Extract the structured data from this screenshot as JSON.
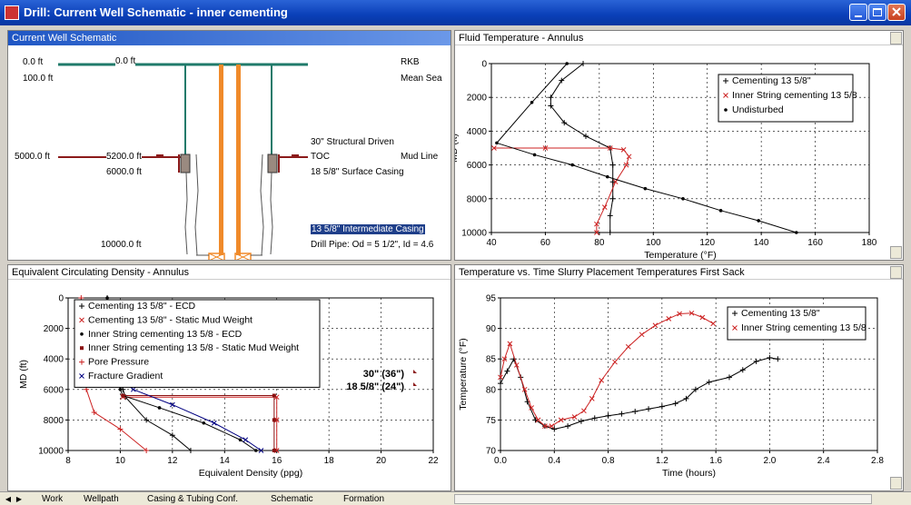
{
  "window": {
    "title": "Drill: Current Well Schematic - inner cementing",
    "icon": "app-icon"
  },
  "panes": {
    "schematic": {
      "title": "Current Well Schematic",
      "left_labels": [
        "0.0 ft",
        "100.0 ft",
        "5000.0 ft",
        "10000.0 ft"
      ],
      "inner_labels": [
        "0.0 ft",
        "5200.0 ft",
        "6000.0 ft"
      ],
      "right_labels": [
        "RKB",
        "Mean Sea",
        "30\" Structural Driven",
        "TOC",
        "Mud Line",
        "18 5/8\" Surface Casing",
        "Drill Pipe: Od = 5 1/2\", Id = 4.6"
      ],
      "selected_label": "13 5/8\" Intermediate Casing"
    },
    "fluid_temp": {
      "title": "Fluid Temperature  - Annulus"
    },
    "ecd": {
      "title": "Equivalent Circulating Density - Annulus"
    },
    "temp_time": {
      "title": "Temperature vs. Time Slurry Placement Temperatures First Sack"
    }
  },
  "chart_data": [
    {
      "type": "line",
      "title": "Fluid Temperature  - Annulus",
      "xlabel": "Temperature (°F)",
      "ylabel": "MD (ft)",
      "xlim": [
        40,
        180
      ],
      "ylim": [
        0,
        10000
      ],
      "y_inverted": true,
      "xticks": [
        "40",
        "60",
        "80",
        "100",
        "120",
        "140",
        "160",
        "180"
      ],
      "yticks": [
        "0",
        "2000",
        "4000",
        "6000",
        "8000",
        "10000"
      ],
      "grid": true,
      "legend": "top-right",
      "series": [
        {
          "name": "Cementing 13 5/8\"",
          "color": "#000000",
          "marker": "+",
          "x": [
            74,
            66,
            62,
            62,
            67,
            75,
            84,
            85,
            85,
            85,
            84,
            84
          ],
          "y": [
            0,
            1000,
            2000,
            2500,
            3500,
            4300,
            5000,
            6000,
            7000,
            8000,
            9000,
            10000
          ]
        },
        {
          "name": "Inner String cementing 13 5/8",
          "color": "#cc2222",
          "marker": "x",
          "x": [
            41,
            60,
            84,
            89,
            91,
            90,
            86,
            82,
            79,
            79
          ],
          "y": [
            5000,
            5000,
            5000,
            5100,
            5500,
            6000,
            7000,
            8500,
            9500,
            10000
          ]
        },
        {
          "name": "Undisturbed",
          "color": "#000000",
          "marker": "dot",
          "x": [
            68,
            55,
            42,
            56,
            70,
            83,
            97,
            111,
            125,
            139,
            153
          ],
          "y": [
            0,
            2300,
            4700,
            5400,
            6000,
            6700,
            7400,
            8000,
            8700,
            9300,
            10000
          ]
        }
      ]
    },
    {
      "type": "line",
      "title": "Equivalent Circulating Density - Annulus",
      "xlabel": "Equivalent Density (ppg)",
      "ylabel": "MD (ft)",
      "xlim": [
        8,
        22
      ],
      "ylim": [
        0,
        10000
      ],
      "y_inverted": true,
      "xticks": [
        "8",
        "10",
        "12",
        "14",
        "16",
        "18",
        "20",
        "22"
      ],
      "yticks": [
        "0",
        "2000",
        "4000",
        "6000",
        "8000",
        "10000"
      ],
      "grid": true,
      "legend": "top-left",
      "annotations": [
        "30\" (36\")",
        "18 5/8\" (24\")"
      ],
      "series": [
        {
          "name": "Cementing 13 5/8\" - ECD",
          "color": "#000000",
          "marker": "+",
          "x": [
            9.5,
            9.8,
            10.1,
            10.2,
            11,
            12,
            12.7
          ],
          "y": [
            0,
            3000,
            6000,
            6500,
            8000,
            9000,
            10000
          ]
        },
        {
          "name": "Cementing 13 5/8\" - Static Mud Weight",
          "color": "#cc2222",
          "marker": "x",
          "x": [
            10.1,
            16,
            16,
            16
          ],
          "y": [
            6500,
            6500,
            8000,
            10000
          ]
        },
        {
          "name": "Inner String cementing 13 5/8 - ECD",
          "color": "#000000",
          "marker": "dot",
          "x": [
            9.5,
            10,
            10.1,
            11.5,
            13.2,
            14.6,
            15.2
          ],
          "y": [
            0,
            6000,
            6400,
            7200,
            8200,
            9300,
            10000
          ]
        },
        {
          "name": "Inner String cementing 13 5/8 - Static Mud Weight",
          "color": "#8a1010",
          "marker": "square",
          "x": [
            10.1,
            15.9,
            15.9,
            15.9
          ],
          "y": [
            6400,
            6400,
            8000,
            10000
          ]
        },
        {
          "name": "Pore Pressure",
          "color": "#cc2222",
          "marker": "+",
          "x": [
            8.5,
            8.7,
            9,
            10,
            11
          ],
          "y": [
            0,
            6000,
            7500,
            8600,
            10000
          ]
        },
        {
          "name": "Fracture Gradient",
          "color": "#000080",
          "marker": "x",
          "x": [
            9.8,
            10.5,
            12,
            13.6,
            14.8,
            15.4
          ],
          "y": [
            5000,
            6000,
            7000,
            8200,
            9300,
            10000
          ]
        }
      ]
    },
    {
      "type": "line",
      "title": "Temperature vs. Time Slurry Placement Temperatures First Sack",
      "xlabel": "Time (hours)",
      "ylabel": "Temperature (°F)",
      "xlim": [
        0,
        2.8
      ],
      "ylim": [
        70,
        95
      ],
      "xticks": [
        "0.0",
        "0.4",
        "0.8",
        "1.2",
        "1.6",
        "2.0",
        "2.4",
        "2.8"
      ],
      "yticks": [
        "70",
        "75",
        "80",
        "85",
        "90",
        "95"
      ],
      "grid": true,
      "legend": "top-right",
      "series": [
        {
          "name": "Cementing 13 5/8\"",
          "color": "#000000",
          "marker": "+",
          "x": [
            0,
            0.05,
            0.1,
            0.15,
            0.2,
            0.26,
            0.33,
            0.4,
            0.5,
            0.6,
            0.7,
            0.8,
            0.9,
            1.0,
            1.1,
            1.2,
            1.3,
            1.38,
            1.45,
            1.55,
            1.7,
            1.8,
            1.9,
            2.0,
            2.06
          ],
          "y": [
            81,
            83,
            85,
            82,
            78,
            75,
            74,
            73.5,
            74,
            74.8,
            75.3,
            75.7,
            76,
            76.4,
            76.8,
            77.2,
            77.7,
            78.5,
            80,
            81.2,
            82,
            83.2,
            84.6,
            85.2,
            85
          ]
        },
        {
          "name": "Inner String cementing 13 5/8",
          "color": "#cc2222",
          "marker": "x",
          "x": [
            0,
            0.03,
            0.07,
            0.12,
            0.18,
            0.23,
            0.28,
            0.33,
            0.38,
            0.45,
            0.55,
            0.62,
            0.68,
            0.75,
            0.85,
            0.95,
            1.05,
            1.15,
            1.25,
            1.33,
            1.42,
            1.5,
            1.58
          ],
          "y": [
            82,
            85,
            87.5,
            84,
            80,
            77,
            75,
            74,
            74,
            75,
            75.5,
            76.5,
            78.5,
            81.5,
            84.5,
            87,
            89,
            90.5,
            91.6,
            92.4,
            92.5,
            91.8,
            90.8
          ]
        }
      ]
    }
  ],
  "tabs": {
    "items": [
      "Work",
      "Wellpath",
      "Casing & Tubing Conf.",
      "Schematic",
      "Formation"
    ]
  }
}
